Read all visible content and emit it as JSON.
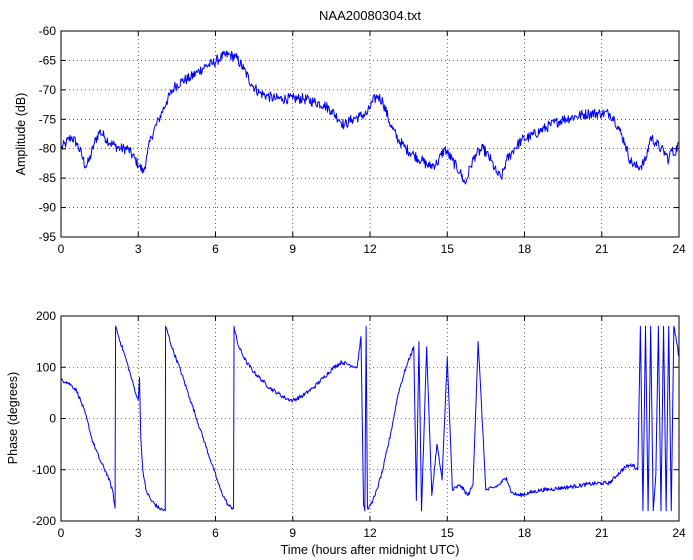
{
  "figure": {
    "title": "NAA20080304.txt",
    "line_color": "#0000ff"
  },
  "chart_data": [
    {
      "type": "line",
      "title": "NAA20080304.txt",
      "xlabel": "",
      "ylabel": "Amplitude (dB)",
      "xlim": [
        0,
        24
      ],
      "ylim": [
        -95,
        -60
      ],
      "xticks": [
        0,
        3,
        6,
        9,
        12,
        15,
        18,
        21,
        24
      ],
      "yticks": [
        -95,
        -90,
        -85,
        -80,
        -75,
        -70,
        -65,
        -60
      ],
      "grid": true,
      "series": [
        {
          "color": "#0000ff",
          "noise": 0.9,
          "x": [
            0,
            0.2,
            0.4,
            0.6,
            0.8,
            0.95,
            1.1,
            1.3,
            1.5,
            1.7,
            1.9,
            2.1,
            2.3,
            2.6,
            2.9,
            3.05,
            3.2,
            3.35,
            3.5,
            3.8,
            4.1,
            4.4,
            4.7,
            5.0,
            5.3,
            5.6,
            5.9,
            6.2,
            6.5,
            6.8,
            7.1,
            7.4,
            7.7,
            8.0,
            8.3,
            8.6,
            9.0,
            9.4,
            9.8,
            10.2,
            10.5,
            10.8,
            11.0,
            11.3,
            11.6,
            11.9,
            12.1,
            12.3,
            12.5,
            12.8,
            13.1,
            13.4,
            13.7,
            14.0,
            14.3,
            14.6,
            14.9,
            15.2,
            15.5,
            15.7,
            15.9,
            16.1,
            16.4,
            16.7,
            16.9,
            17.1,
            17.3,
            17.6,
            17.9,
            18.2,
            18.6,
            19.0,
            19.5,
            20.0,
            20.5,
            21.0,
            21.3,
            21.5,
            21.7,
            21.9,
            22.1,
            22.3,
            22.5,
            22.7,
            22.9,
            23.1,
            23.3,
            23.5,
            23.6,
            23.7,
            23.8,
            24.0
          ],
          "y": [
            -80,
            -79,
            -78,
            -79,
            -81,
            -83,
            -82,
            -79,
            -77,
            -78,
            -79,
            -79.5,
            -80,
            -80,
            -82,
            -83,
            -84,
            -81,
            -78,
            -75,
            -72,
            -69.5,
            -68.5,
            -68,
            -67,
            -66,
            -65.5,
            -64.5,
            -64,
            -64.5,
            -66.5,
            -69,
            -70.5,
            -71,
            -71.5,
            -71.5,
            -71.5,
            -71.5,
            -72,
            -72.5,
            -73.5,
            -75,
            -76,
            -75,
            -74.5,
            -74,
            -72,
            -71,
            -72,
            -76,
            -78.5,
            -80,
            -81,
            -82,
            -83,
            -82.5,
            -80,
            -82,
            -84,
            -86,
            -83,
            -81,
            -80,
            -82,
            -84,
            -85,
            -82,
            -80,
            -78.5,
            -78,
            -77,
            -76,
            -75,
            -74.5,
            -74,
            -74,
            -74,
            -75,
            -77,
            -79,
            -82,
            -83,
            -83,
            -82,
            -78,
            -79,
            -80,
            -81,
            -82,
            -80,
            -81,
            -79
          ]
        }
      ]
    },
    {
      "type": "line",
      "title": "",
      "xlabel": "Time (hours after midnight UTC)",
      "ylabel": "Phase (degrees)",
      "xlim": [
        0,
        24
      ],
      "ylim": [
        -200,
        200
      ],
      "xticks": [
        0,
        3,
        6,
        9,
        12,
        15,
        18,
        21,
        24
      ],
      "yticks": [
        -200,
        -100,
        0,
        100,
        200
      ],
      "grid": true,
      "series": [
        {
          "color": "#0000ff",
          "noise": 4,
          "x": [
            0,
            0.2,
            0.4,
            0.6,
            0.8,
            1.0,
            1.2,
            1.5,
            1.8,
            2.0,
            2.1,
            2.12,
            2.15,
            2.3,
            2.5,
            2.7,
            2.9,
            3.0,
            3.05,
            3.1,
            3.15,
            3.2,
            3.3,
            3.5,
            3.8,
            4.05,
            4.06,
            4.1,
            4.3,
            4.6,
            5.0,
            5.4,
            5.8,
            6.2,
            6.5,
            6.7,
            6.72,
            6.75,
            6.9,
            7.2,
            7.5,
            7.8,
            8.1,
            8.4,
            8.7,
            9.0,
            9.4,
            9.8,
            10.2,
            10.6,
            10.9,
            11.2,
            11.5,
            11.65,
            11.75,
            11.8,
            11.85,
            11.9,
            11.95,
            12.0,
            12.2,
            12.5,
            12.8,
            13.1,
            13.4,
            13.7,
            13.8,
            13.9,
            14.0,
            14.2,
            14.4,
            14.6,
            14.8,
            15.0,
            15.2,
            15.5,
            15.8,
            16.0,
            16.2,
            16.5,
            16.8,
            17.0,
            17.3,
            17.5,
            17.8,
            18.2,
            18.6,
            19.0,
            19.5,
            20.0,
            20.5,
            21.0,
            21.3,
            21.6,
            21.9,
            22.2,
            22.4,
            22.5,
            22.6,
            22.7,
            22.8,
            22.9,
            23.0,
            23.1,
            23.2,
            23.3,
            23.4,
            23.5,
            23.6,
            23.7,
            23.8,
            23.9,
            24.0
          ],
          "y": [
            75,
            72,
            65,
            55,
            30,
            0,
            -40,
            -80,
            -110,
            -140,
            -175,
            180,
            175,
            150,
            120,
            85,
            50,
            35,
            80,
            -40,
            -80,
            -110,
            -140,
            -160,
            -175,
            -180,
            180,
            175,
            140,
            100,
            40,
            -20,
            -80,
            -140,
            -170,
            -175,
            180,
            170,
            140,
            110,
            90,
            75,
            60,
            50,
            40,
            35,
            45,
            60,
            80,
            100,
            110,
            105,
            100,
            160,
            -170,
            -180,
            180,
            -175,
            -175,
            -170,
            -150,
            -100,
            -30,
            50,
            100,
            140,
            -160,
            150,
            -180,
            140,
            -150,
            -50,
            -120,
            120,
            -140,
            -130,
            -150,
            -130,
            150,
            -140,
            -135,
            -130,
            -115,
            -145,
            -150,
            -145,
            -140,
            -138,
            -135,
            -132,
            -128,
            -126,
            -126,
            -110,
            -95,
            -90,
            -100,
            180,
            -180,
            180,
            -180,
            180,
            -180,
            -110,
            180,
            -180,
            180,
            -180,
            180,
            -180,
            180,
            150,
            120
          ]
        }
      ]
    }
  ]
}
